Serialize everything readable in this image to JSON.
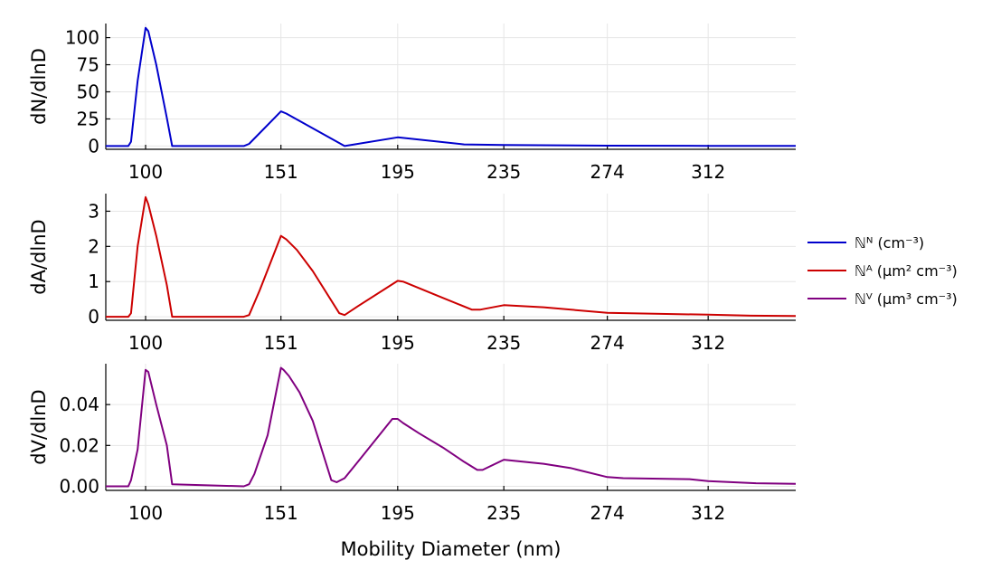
{
  "chart_data": [
    {
      "type": "line",
      "ylabel": "dN/dlnD",
      "xlabel": "",
      "yticks": [
        0,
        25,
        50,
        75,
        100
      ],
      "ytick_labels": [
        "0",
        "25",
        "50",
        "75",
        "100"
      ],
      "ylim": [
        -3,
        113
      ],
      "series": [
        {
          "name": "ℕᴺ (cm⁻³)",
          "color": "#0000cc",
          "x": [
            85,
            93.5,
            94.5,
            97,
            100,
            101,
            104,
            108,
            110,
            137,
            139,
            151,
            153,
            175,
            195,
            220,
            235,
            274,
            312,
            345
          ],
          "y": [
            0,
            0,
            4,
            60,
            109,
            106,
            75,
            26,
            0,
            0,
            2,
            32,
            30,
            0,
            8,
            1.5,
            1,
            0.3,
            0.2,
            0.2
          ]
        }
      ]
    },
    {
      "type": "line",
      "ylabel": "dA/dlnD",
      "xlabel": "",
      "yticks": [
        0,
        1,
        2,
        3
      ],
      "ytick_labels": [
        "0",
        "1",
        "2",
        "3"
      ],
      "ylim": [
        -0.1,
        3.5
      ],
      "series": [
        {
          "name": "ℕᴬ (μm² cm⁻³)",
          "color": "#cc0000",
          "x": [
            85,
            93.5,
            94.5,
            97,
            100,
            101,
            104,
            108,
            110,
            137,
            139,
            143,
            151,
            153,
            157,
            163,
            173,
            175,
            180,
            195,
            197,
            210,
            223,
            226,
            235,
            250,
            274,
            312,
            328,
            345
          ],
          "y": [
            0,
            0,
            0.1,
            2.0,
            3.4,
            3.2,
            2.3,
            0.9,
            0,
            0,
            0.05,
            0.75,
            2.3,
            2.2,
            1.9,
            1.3,
            0.1,
            0.05,
            0.3,
            1.02,
            1.0,
            0.6,
            0.2,
            0.2,
            0.33,
            0.27,
            0.11,
            0.06,
            0.03,
            0.02
          ]
        }
      ]
    },
    {
      "type": "line",
      "ylabel": "dV/dlnD",
      "xlabel": "Mobility Diameter (nm)",
      "yticks": [
        0,
        0.02,
        0.04
      ],
      "ytick_labels": [
        "0.00",
        "0.02",
        "0.04"
      ],
      "ylim": [
        -0.002,
        0.06
      ],
      "series": [
        {
          "name": "ℕⱽ (μm³ cm⁻³)",
          "color": "#800080",
          "x": [
            85,
            93.5,
            94.5,
            97,
            100,
            101,
            104,
            108,
            110,
            137,
            139,
            141,
            146,
            151,
            152,
            154,
            158,
            163,
            170,
            172,
            175,
            180,
            193,
            195,
            197,
            203,
            212,
            220,
            225,
            227,
            235,
            250,
            260,
            274,
            280,
            305,
            312,
            330,
            345
          ],
          "y": [
            0,
            0,
            0.003,
            0.018,
            0.057,
            0.056,
            0.04,
            0.02,
            0.001,
            0,
            0.001,
            0.006,
            0.025,
            0.058,
            0.057,
            0.054,
            0.046,
            0.032,
            0.003,
            0.002,
            0.004,
            0.012,
            0.033,
            0.033,
            0.031,
            0.026,
            0.019,
            0.012,
            0.008,
            0.008,
            0.013,
            0.011,
            0.009,
            0.0045,
            0.004,
            0.0035,
            0.0025,
            0.0015,
            0.0012
          ]
        }
      ]
    }
  ],
  "x_axis": {
    "ticks": [
      100,
      151,
      195,
      235,
      274,
      312
    ],
    "tick_labels": [
      "100",
      "151",
      "195",
      "235",
      "274",
      "312"
    ],
    "xlim": [
      85,
      345
    ]
  },
  "legend": {
    "placement": "right",
    "items": [
      {
        "label": "ℕᴺ (cm⁻³)",
        "color": "#0000cc"
      },
      {
        "label": "ℕᴬ (μm² cm⁻³)",
        "color": "#cc0000"
      },
      {
        "label": "ℕⱽ (μm³ cm⁻³)",
        "color": "#800080"
      }
    ]
  },
  "grid": true
}
